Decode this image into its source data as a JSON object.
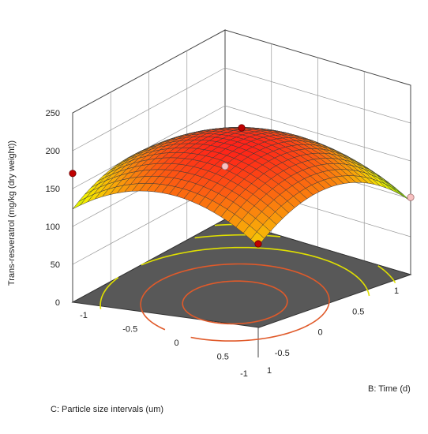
{
  "chart_data": {
    "type": "surface3d",
    "zlabel": "Trans-resveratrol (mg/kg (dry weight))",
    "xlabel": "B: Time (d)",
    "ylabel": "C: Particle size intervals (um)",
    "xlim": [
      -1,
      1
    ],
    "ylim": [
      -1,
      1
    ],
    "zlim": [
      0,
      250
    ],
    "x_ticks": [
      "-1",
      "-0.5",
      "0",
      "0.5",
      "1"
    ],
    "y_ticks": [
      "-1",
      "-0.5",
      "0",
      "0.5",
      "1"
    ],
    "z_ticks": [
      "0",
      "50",
      "100",
      "150",
      "200",
      "250"
    ],
    "surface": {
      "model": "z = 205 + 12*x - 45*x^2 + 25*y - 50*y^2",
      "grid": 25,
      "corner_values": [
        {
          "x": -1,
          "y": -1,
          "z": 73
        },
        {
          "x": 1,
          "y": -1,
          "z": 97
        },
        {
          "x": 1,
          "y": 1,
          "z": 147
        },
        {
          "x": -1,
          "y": 1,
          "z": 123
        }
      ]
    },
    "design_points": [
      {
        "x": 1,
        "y": 1,
        "z": 150,
        "position": "above"
      },
      {
        "x": 1,
        "y": -1,
        "z": 102,
        "position": "below"
      },
      {
        "x": -1,
        "y": 1,
        "z": 170,
        "position": "above"
      },
      {
        "x": -1,
        "y": -1,
        "z": 70,
        "position": "below"
      },
      {
        "x": 0,
        "y": 0,
        "z": 212,
        "position": "above"
      }
    ],
    "contours": true,
    "colors": {
      "low": "#00e000",
      "mid": "#f5f000",
      "high": "#ff1a1a",
      "floor": "#585858",
      "contour": "#e0e000"
    }
  }
}
